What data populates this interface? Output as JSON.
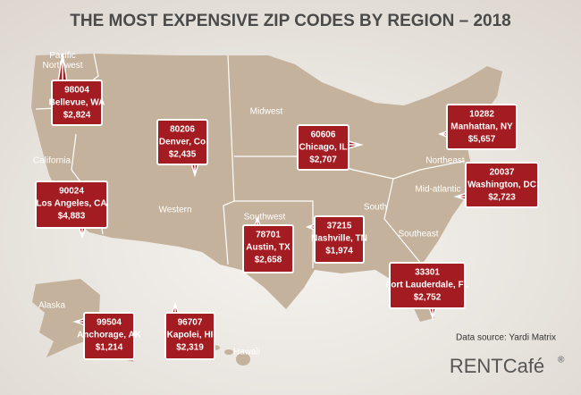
{
  "title": "THE MOST EXPENSIVE ZIP CODES BY REGION – 2018",
  "regions": [
    "Pacific Northwest",
    "California",
    "Midwest",
    "Western",
    "Southwest",
    "South",
    "Northeast",
    "Mid-atlantic",
    "Southeast",
    "Alaska",
    "Hawaii"
  ],
  "callouts": [
    {
      "zip": "98004",
      "city": "Bellevue, WA",
      "rent": "$2,824"
    },
    {
      "zip": "80206",
      "city": "Denver, Co",
      "rent": "$2,435"
    },
    {
      "zip": "60606",
      "city": "Chicago, IL",
      "rent": "$2,707"
    },
    {
      "zip": "10282",
      "city": "Manhattan, NY",
      "rent": "$5,657"
    },
    {
      "zip": "20037",
      "city": "Washington, DC",
      "rent": "$2,723"
    },
    {
      "zip": "90024",
      "city": "Los Angeles, CA",
      "rent": "$4,883"
    },
    {
      "zip": "78701",
      "city": "Austin, TX",
      "rent": "$2,658"
    },
    {
      "zip": "37215",
      "city": "Nashville, TN",
      "rent": "$1,974"
    },
    {
      "zip": "33301",
      "city": "Fort Lauderdale, FL",
      "rent": "$2,752"
    },
    {
      "zip": "99504",
      "city": "Anchorage, AK",
      "rent": "$1,214"
    },
    {
      "zip": "96707",
      "city": "Kapolei, HI",
      "rent": "$2,319"
    }
  ],
  "source": "Data source:  Yardi Matrix",
  "logo": {
    "name": "RENTCafé",
    "mark": "®"
  }
}
